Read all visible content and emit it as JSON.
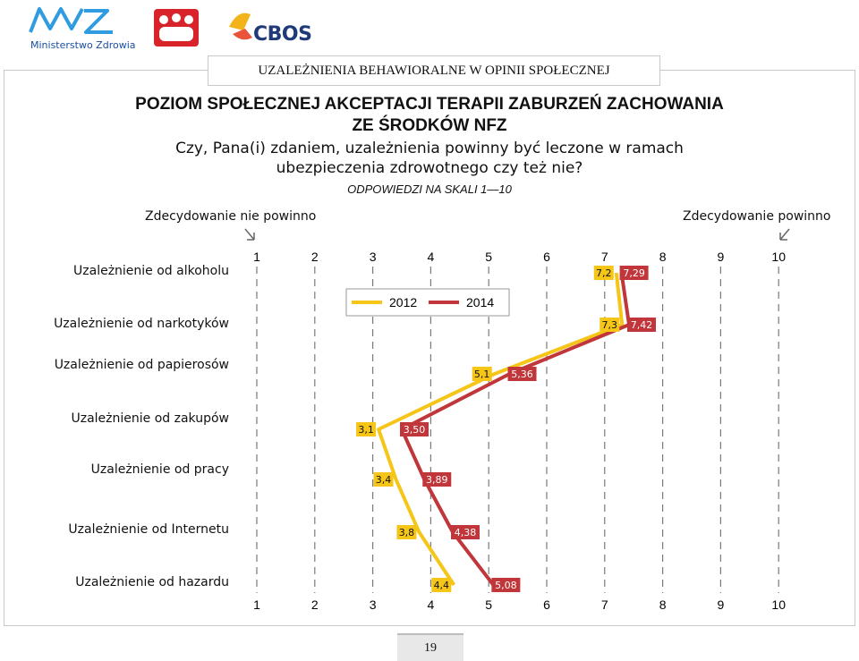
{
  "logos": {
    "ministry": "Ministerstwo Zdrowia",
    "cbos": "CBOS"
  },
  "header": "UZALEŻNIENIA BEHAWIORALNE W OPINII SPOŁECZNEJ",
  "title_line1": "POZIOM SPOŁECZNEJ AKCEPTACJI TERAPII ZABURZEŃ ZACHOWANIA",
  "title_line2": "ZE ŚRODKÓW NFZ",
  "question_line1": "Czy, Pana(i) zdaniem, uzależnienia powinny być leczone w ramach",
  "question_line2": "ubezpieczenia zdrowotnego czy też nie?",
  "scale_note": "ODPOWIEDZI NA SKALI 1—10",
  "pole_left": "Zdecydowanie nie powinno",
  "pole_right": "Zdecydowanie powinno",
  "page_number": "19",
  "chart_data": {
    "type": "line",
    "orientation": "horizontal",
    "categories": [
      "Uzależnienie od alkoholu",
      "Uzależnienie od narkotyków",
      "Uzależnienie od papierosów",
      "Uzależnienie od zakupów",
      "Uzależnienie od pracy",
      "Uzależnienie od Internetu",
      "Uzależnienie od hazardu"
    ],
    "xlim": [
      1,
      10
    ],
    "xticks": [
      "1",
      "2",
      "3",
      "4",
      "5",
      "6",
      "7",
      "8",
      "9",
      "10"
    ],
    "series": [
      {
        "name": "2012",
        "color": "#f5c518",
        "values": [
          7.2,
          7.3,
          5.1,
          3.1,
          3.4,
          3.8,
          4.4
        ],
        "labels": [
          "7,2",
          "7,3",
          "5,1",
          "3,1",
          "3,4",
          "3,8",
          "4,4"
        ]
      },
      {
        "name": "2014",
        "color": "#c0363a",
        "values": [
          7.29,
          7.42,
          5.36,
          3.5,
          3.89,
          4.38,
          5.08
        ],
        "labels": [
          "7,29",
          "7,42",
          "5,36",
          "3,50",
          "3,89",
          "4,38",
          "5,08"
        ]
      }
    ],
    "grid": true,
    "legend": "top-center"
  }
}
